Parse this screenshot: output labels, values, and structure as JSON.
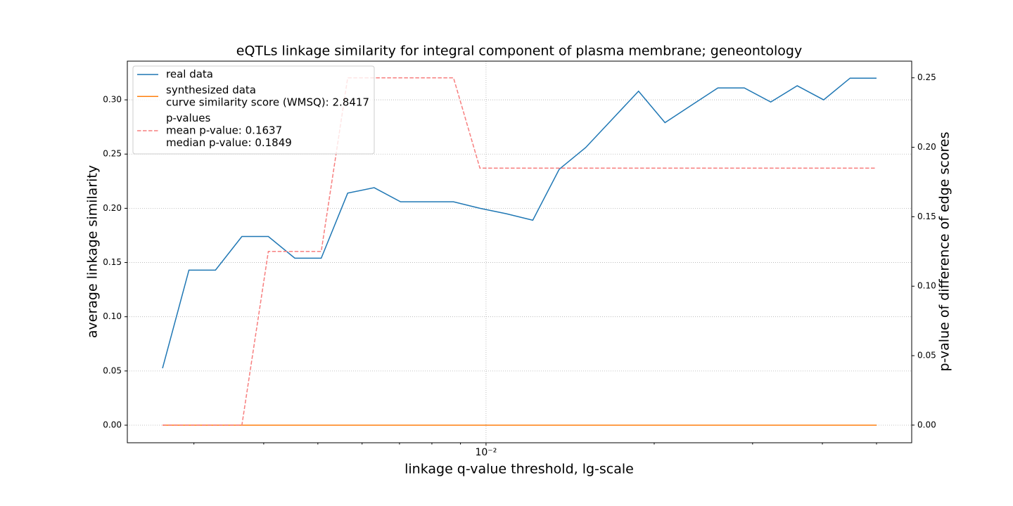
{
  "chart_data": {
    "type": "line",
    "title": "eQTLs linkage similarity for integral component of plasma membrane; geneontology",
    "xlabel": "linkage q-value threshold, lg-scale",
    "ylabel": "average linkage similarity",
    "y2label": "p-value of difference of edge scores",
    "xscale": "log",
    "x": [
      0.002636,
      0.002939,
      0.003279,
      0.003656,
      0.004077,
      0.004547,
      0.00507,
      0.005654,
      0.006306,
      0.007031,
      0.007841,
      0.008745,
      0.00975,
      0.010872,
      0.012125,
      0.013521,
      0.015077,
      0.016813,
      0.01875,
      0.020908,
      0.023316,
      0.026002,
      0.028994,
      0.032333,
      0.036058,
      0.040209,
      0.044836,
      0.05
    ],
    "series": [
      {
        "name": [
          "real data"
        ],
        "color": "#1f77b4",
        "dash": false,
        "values": [
          0.0525,
          0.143,
          0.143,
          0.174,
          0.174,
          0.154,
          0.154,
          0.214,
          0.219,
          0.206,
          0.206,
          0.206,
          0.2,
          0.195,
          0.189,
          0.236,
          0.256,
          0.282,
          0.308,
          0.279,
          0.295,
          0.311,
          0.311,
          0.298,
          0.313,
          0.3,
          0.32,
          0.32
        ]
      },
      {
        "name": [
          "synthesized data",
          "curve similarity score (WMSQ): 2.8417"
        ],
        "color": "#ff7f0e",
        "dash": false,
        "values": [
          0,
          0,
          0,
          0,
          0,
          0,
          0,
          0,
          0,
          0,
          0,
          0,
          0,
          0,
          0,
          0,
          0,
          0,
          0,
          0,
          0,
          0,
          0,
          0,
          0,
          0,
          0,
          0
        ]
      },
      {
        "name": [
          "p-values",
          "mean p-value: 0.1637",
          "median p-value: 0.1849"
        ],
        "color": "#f77f7f",
        "dash": true,
        "axis": "y2",
        "values": [
          0,
          0,
          0,
          0,
          0.125,
          0.125,
          0.125,
          0.25,
          0.25,
          0.25,
          0.25,
          0.25,
          0.185,
          0.185,
          0.185,
          0.185,
          0.185,
          0.185,
          0.185,
          0.185,
          0.185,
          0.185,
          0.185,
          0.185,
          0.185,
          0.185,
          0.185,
          0.185
        ]
      }
    ],
    "xlim": [
      0.00228,
      0.0578
    ],
    "xticks": [
      {
        "value": 0.01,
        "label": "10⁻²"
      }
    ],
    "xminorticks": [
      0.003,
      0.004,
      0.005,
      0.006,
      0.007,
      0.008,
      0.009,
      0.02,
      0.03,
      0.04,
      0.05
    ],
    "ylim": [
      -0.0162,
      0.3357
    ],
    "yticks": [
      {
        "value": 0,
        "label": "0.00"
      },
      {
        "value": 0.05,
        "label": "0.05"
      },
      {
        "value": 0.1,
        "label": "0.10"
      },
      {
        "value": 0.15,
        "label": "0.15"
      },
      {
        "value": 0.2,
        "label": "0.20"
      },
      {
        "value": 0.25,
        "label": "0.25"
      },
      {
        "value": 0.3,
        "label": "0.30"
      }
    ],
    "y2lim": [
      -0.0127,
      0.262
    ],
    "y2ticks": [
      {
        "value": 0,
        "label": "0.00"
      },
      {
        "value": 0.05,
        "label": "0.05"
      },
      {
        "value": 0.1,
        "label": "0.10"
      },
      {
        "value": 0.15,
        "label": "0.15"
      },
      {
        "value": 0.2,
        "label": "0.20"
      },
      {
        "value": 0.25,
        "label": "0.25"
      }
    ],
    "grid": true,
    "legend": "upper left"
  }
}
